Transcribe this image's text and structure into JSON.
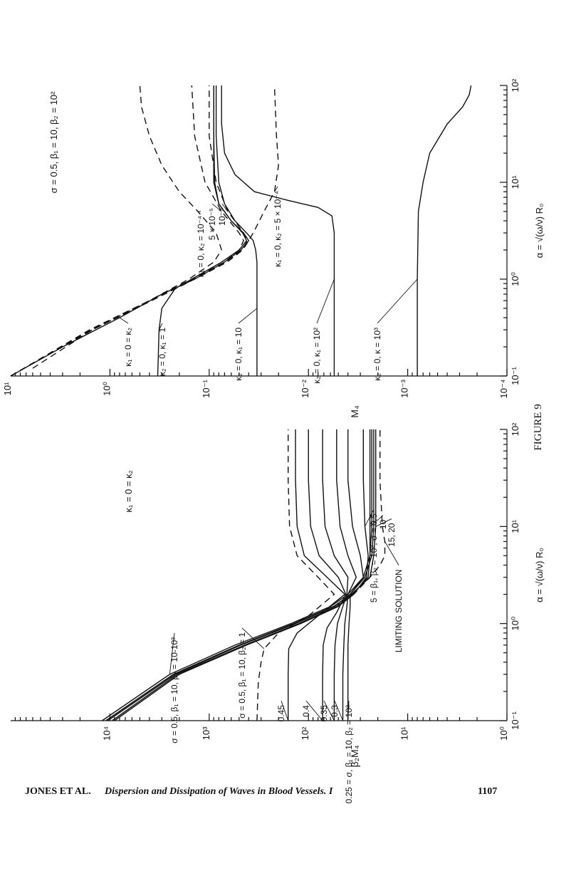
{
  "figure_caption": "FIGURE 9",
  "footer": {
    "authors": "JONES ET AL.",
    "title": "Dispersion and Dissipation of Waves in Blood Vessels. I",
    "page": "1107"
  },
  "chart_data": [
    {
      "type": "line",
      "title": "",
      "orientation": "rotated 90° counter-clockwise on the page",
      "xlabel": "α = √(ω/ν) R₀",
      "ylabel": "β₂M₄",
      "x_scale": "log",
      "y_scale": "log",
      "xlim": [
        0.1,
        100
      ],
      "ylim": [
        1,
        100000
      ],
      "x_ticks": [
        "10⁻¹",
        "10⁰",
        "10¹",
        "10²"
      ],
      "y_ticks": [
        "10⁰",
        "10¹",
        "10²",
        "10³",
        "10⁴"
      ],
      "header_annotation": "κ₁ = 0 = κ₂",
      "series": [
        {
          "label": "σ = 0.5, β₁ = 10, β₂ = 10-10³",
          "style": "solid",
          "x": [
            0.1,
            0.3,
            0.6,
            1.0,
            1.5,
            2.0,
            3.0,
            5.0,
            10,
            30,
            100
          ],
          "y": [
            12000,
            2500,
            550,
            150,
            60,
            40,
            28,
            24,
            23,
            23,
            23
          ]
        },
        {
          "label": "σ = 0.5, β₁ = 10, β₂ = 10-10³",
          "style": "solid",
          "x": [
            0.1,
            0.3,
            0.6,
            1.0,
            1.5,
            2.0,
            3.0,
            5.0,
            10,
            30,
            100
          ],
          "y": [
            10500,
            2200,
            480,
            135,
            55,
            38,
            27,
            23,
            22,
            22,
            22
          ]
        },
        {
          "label": "σ = 0.5, β₁ = 10, β₂ = 1",
          "style": "dashed",
          "x": [
            0.1,
            0.25,
            0.4,
            0.55,
            0.8,
            1.2,
            2.0,
            3.0,
            5.0,
            10,
            30,
            100
          ],
          "y": [
            330,
            320,
            300,
            280,
            200,
            100,
            55,
            80,
            130,
            155,
            160,
            160
          ]
        },
        {
          "label": "0.45",
          "style": "solid",
          "x": [
            0.1,
            0.3,
            0.55,
            0.8,
            1.2,
            2.0,
            3.0,
            5.0,
            10,
            30,
            100
          ],
          "y": [
            160,
            160,
            158,
            130,
            80,
            43,
            65,
            110,
            130,
            135,
            135
          ]
        },
        {
          "label": "0.4",
          "style": "solid",
          "x": [
            0.1,
            0.3,
            0.6,
            0.9,
            1.3,
            2.0,
            3.0,
            5.0,
            10,
            30,
            100
          ],
          "y": [
            72,
            72,
            71,
            65,
            52,
            42,
            50,
            78,
            95,
            100,
            100
          ]
        },
        {
          "label": "0.35",
          "style": "solid",
          "x": [
            0.1,
            0.3,
            0.6,
            1.0,
            1.4,
            2.0,
            3.0,
            5.0,
            10,
            30,
            100
          ],
          "y": [
            55,
            55,
            54,
            51,
            46,
            41,
            40,
            55,
            68,
            72,
            72
          ]
        },
        {
          "label": "0.3",
          "style": "solid",
          "x": [
            0.1,
            0.3,
            0.6,
            1.0,
            1.5,
            2.0,
            3.0,
            5.0,
            10,
            30,
            100
          ],
          "y": [
            45,
            45,
            44,
            43,
            41,
            40,
            33,
            40,
            48,
            52,
            52
          ]
        },
        {
          "label": "0.25 = σ, β₁ = 10, β₂ = 10²",
          "style": "solid",
          "x": [
            0.1,
            0.3,
            0.6,
            1.0,
            1.5,
            2.0,
            3.0,
            5.0,
            10,
            30,
            100
          ],
          "y": [
            40,
            40,
            40,
            39,
            38,
            38,
            28,
            30,
            36,
            40,
            40
          ]
        },
        {
          "label": "5 = β₁, β₂ = 10², σ = 0.5",
          "style": "solid",
          "x": [
            0.1,
            0.3,
            0.6,
            1.0,
            1.5,
            2.0,
            3.0,
            5.0,
            10,
            30,
            100
          ],
          "y": [
            9000,
            2000,
            420,
            120,
            50,
            35,
            26,
            25,
            27,
            28,
            28
          ]
        },
        {
          "label": "10",
          "style": "solid",
          "x": [
            0.1,
            0.3,
            0.6,
            1.0,
            1.5,
            2.0,
            3.0,
            5.0,
            10,
            30,
            100
          ],
          "y": [
            9500,
            2100,
            440,
            125,
            52,
            36,
            25,
            24,
            24,
            24,
            24
          ]
        },
        {
          "label": "15, 20",
          "style": "solid",
          "x": [
            0.1,
            0.3,
            0.6,
            1.0,
            1.5,
            2.0,
            3.0,
            5.0,
            10,
            30,
            100
          ],
          "y": [
            11000,
            2300,
            500,
            140,
            56,
            37,
            24,
            22,
            21,
            21,
            21
          ]
        },
        {
          "label": "LIMITING SOLUTION",
          "style": "dashed",
          "x": [
            1.5,
            2.0,
            3.0,
            4.0,
            5.0,
            7.0,
            10,
            30,
            100
          ],
          "y": [
            55,
            35,
            24,
            19,
            17,
            17,
            18,
            19,
            19
          ]
        }
      ]
    },
    {
      "type": "line",
      "title": "",
      "orientation": "rotated 90° counter-clockwise on the page",
      "xlabel": "α = √(ω/ν) R₀",
      "ylabel": "M₄",
      "x_scale": "log",
      "y_scale": "log",
      "xlim": [
        0.1,
        100
      ],
      "ylim": [
        0.0001,
        10
      ],
      "x_ticks": [
        "10⁻¹",
        "10⁰",
        "10¹",
        "10²"
      ],
      "y_ticks": [
        "10⁻⁴",
        "10⁻³",
        "10⁻²",
        "10⁻¹",
        "10⁰",
        "10¹"
      ],
      "header_annotation": "σ = 0.5, β₁ = 10, β₂ = 10²",
      "series": [
        {
          "label": "κ₁ = 0 = κ₂",
          "style": "solid",
          "x": [
            0.1,
            0.2,
            0.4,
            0.7,
            1.0,
            1.5,
            2.0,
            2.5,
            3.0,
            4.0,
            6.0,
            10,
            30,
            100
          ],
          "y": [
            10,
            3.0,
            0.8,
            0.3,
            0.14,
            0.07,
            0.048,
            0.04,
            0.045,
            0.06,
            0.08,
            0.09,
            0.09,
            0.09
          ]
        },
        {
          "label": "κ₂ = 0, κ₁ = 1",
          "style": "solid",
          "x": [
            0.1,
            0.3,
            0.5,
            0.8,
            1.0,
            1.5,
            2.0,
            2.5,
            3.0,
            4.0,
            6.0,
            10,
            30,
            100
          ],
          "y": [
            0.33,
            0.32,
            0.3,
            0.22,
            0.15,
            0.075,
            0.05,
            0.042,
            0.046,
            0.06,
            0.08,
            0.088,
            0.09,
            0.09
          ]
        },
        {
          "label": "κ₂ = 0, κ₁ = 10",
          "style": "solid",
          "x": [
            0.1,
            0.5,
            1.0,
            1.5,
            2.0,
            2.5,
            3.0,
            4.0,
            6.0,
            10,
            30,
            100
          ],
          "y": [
            0.033,
            0.033,
            0.033,
            0.033,
            0.034,
            0.036,
            0.042,
            0.055,
            0.07,
            0.08,
            0.085,
            0.085
          ]
        },
        {
          "label": "κ₂ = 0, κ₁ = 10²",
          "style": "solid",
          "x": [
            0.1,
            1.0,
            3.0,
            4.5,
            5.5,
            6.5,
            8.0,
            12,
            20,
            40,
            100
          ],
          "y": [
            0.0055,
            0.0055,
            0.0055,
            0.0058,
            0.008,
            0.016,
            0.035,
            0.055,
            0.07,
            0.075,
            0.075
          ]
        },
        {
          "label": "κ₂ = 0, κ = 10³",
          "style": "solid",
          "x": [
            0.1,
            1.0,
            5.0,
            10,
            20,
            40,
            60,
            80,
            100
          ],
          "y": [
            0.0008,
            0.0008,
            0.00078,
            0.0007,
            0.0006,
            0.0004,
            0.00028,
            0.00024,
            0.00023
          ]
        },
        {
          "label": "κ₁ = 0, κ₂ = 10⁻⁴",
          "style": "dashed",
          "x": [
            0.12,
            0.3,
            0.6,
            1.0,
            1.5,
            2.0,
            3.0,
            5.0,
            8.0,
            15,
            30,
            60,
            100
          ],
          "y": [
            6.0,
            1.5,
            0.4,
            0.16,
            0.09,
            0.075,
            0.085,
            0.13,
            0.2,
            0.3,
            0.4,
            0.48,
            0.5
          ]
        },
        {
          "label": "5 × 10⁻⁵",
          "style": "dashed",
          "x": [
            0.1,
            0.3,
            0.6,
            1.0,
            1.5,
            2.0,
            2.5,
            3.0,
            5.0,
            10,
            30,
            100
          ],
          "y": [
            10,
            1.6,
            0.4,
            0.15,
            0.07,
            0.05,
            0.045,
            0.05,
            0.075,
            0.11,
            0.14,
            0.15
          ]
        },
        {
          "label": "10⁻⁵",
          "style": "dashed",
          "x": [
            0.1,
            0.3,
            0.6,
            1.0,
            1.5,
            2.0,
            2.5,
            3.0,
            5.0,
            10,
            30,
            100
          ],
          "y": [
            10,
            1.55,
            0.39,
            0.145,
            0.068,
            0.047,
            0.041,
            0.045,
            0.065,
            0.085,
            0.1,
            0.1
          ]
        },
        {
          "label": "κ₁ = 0, κ₂ = 5 × 10⁻⁴",
          "style": "dashed",
          "x": [
            0.1,
            0.3,
            0.6,
            1.0,
            1.5,
            2.0,
            2.5,
            3.0,
            5.0,
            8.0,
            15,
            30,
            100
          ],
          "y": [
            10,
            1.5,
            0.38,
            0.14,
            0.066,
            0.046,
            0.04,
            0.036,
            0.028,
            0.022,
            0.02,
            0.021,
            0.022
          ]
        }
      ]
    }
  ]
}
